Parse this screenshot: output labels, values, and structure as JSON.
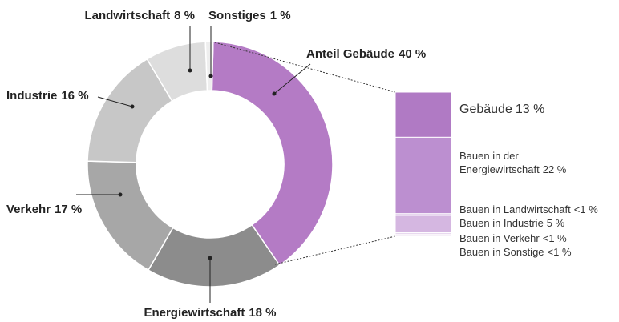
{
  "chart_data": [
    {
      "type": "donut",
      "categories": [
        "Anteil Gebäude",
        "Energiewirtschaft",
        "Verkehr",
        "Industrie",
        "Landwirtschaft",
        "Sonstiges"
      ],
      "values": [
        40,
        18,
        17,
        16,
        8,
        1
      ],
      "value_labels": [
        "40 %",
        "18 %",
        "17 %",
        "16 %",
        "8 %",
        "1 %"
      ],
      "colors": [
        "#b47bc5",
        "#8c8c8c",
        "#a7a7a7",
        "#c7c7c7",
        "#dddddd",
        "#eeeeee"
      ]
    },
    {
      "type": "stacked-bar",
      "categories": [
        "Gebäude",
        "Bauen in der Energiewirtschaft",
        "Bauen in Landwirtschaft",
        "Bauen in Industrie",
        "Bauen in Verkehr",
        "Bauen in Sonstige"
      ],
      "values": [
        13,
        22,
        0.5,
        5,
        0.5,
        0.5
      ],
      "value_labels": [
        "13 %",
        "22 %",
        "<1 %",
        "5 %",
        "<1 %",
        "<1 %"
      ],
      "colors": [
        "#b07ac4",
        "#bc8fd0",
        "#dcc4e7",
        "#d5b7e1",
        "#e4d2ec",
        "#ece0f1"
      ]
    }
  ]
}
